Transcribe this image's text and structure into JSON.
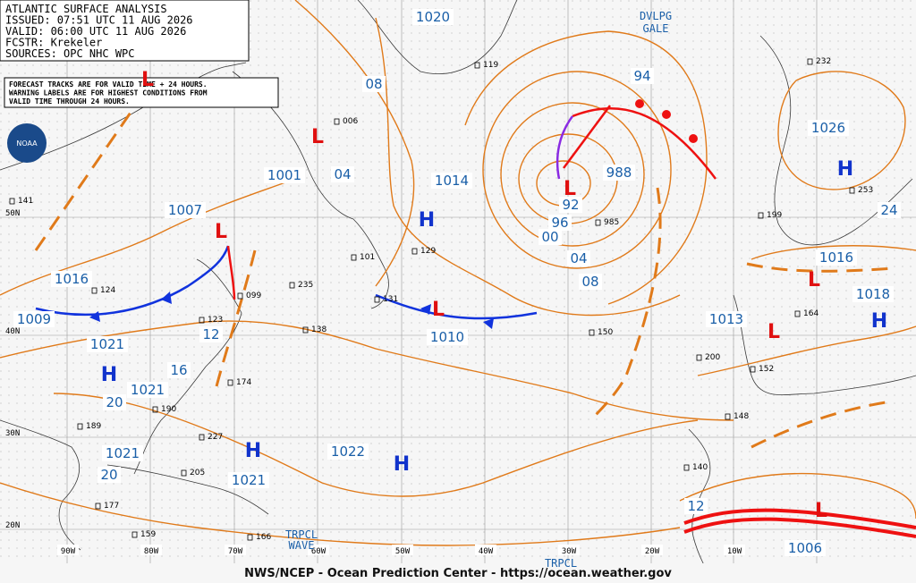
{
  "header": {
    "lines": [
      "ATLANTIC SURFACE ANALYSIS",
      "ISSUED: 07:51 UTC 11 AUG 2026",
      "VALID:  06:00 UTC 11 AUG 2026",
      "FCSTR:  Krekeler",
      "SOURCES: OPC NHC WPC"
    ]
  },
  "notice": {
    "lines": [
      "FORECAST TRACKS ARE FOR VALID TIME + 24 HOURS.",
      "WARNING LABELS ARE FOR HIGHEST CONDITIONS FROM",
      "VALID TIME THROUGH 24 HOURS."
    ]
  },
  "logo": "NOAA",
  "isobar_labels": [
    "1020",
    "08",
    "1001",
    "04",
    "1014",
    "1007",
    "1016",
    "1009",
    "1021",
    "1010",
    "988",
    "94",
    "92",
    "96",
    "00",
    "04",
    "08",
    "1026",
    "24",
    "1016",
    "1018",
    "1013",
    "12",
    "16",
    "1021",
    "20",
    "1021",
    "20",
    "1022",
    "1021",
    "12",
    "1006"
  ],
  "centers": [
    "L",
    "L",
    "L",
    "L",
    "L",
    "L",
    "L",
    "L",
    "H",
    "H",
    "H",
    "H",
    "H",
    "H"
  ],
  "lat_labels": [
    "50N",
    "40N",
    "30N",
    "20N"
  ],
  "lon_labels": [
    "90W",
    "80W",
    "70W",
    "60W",
    "50W",
    "40W",
    "30W",
    "20W",
    "10W"
  ],
  "special_labels": [
    "DVLPG",
    "GALE",
    "TRPCL",
    "WAVE",
    "TRPCL"
  ],
  "stations": [
    "141",
    "006",
    "129",
    "101",
    "985",
    "131",
    "235",
    "150",
    "199",
    "253",
    "232",
    "164",
    "174",
    "138",
    "099",
    "124",
    "123",
    "190",
    "189",
    "227",
    "205",
    "177",
    "200",
    "152",
    "148",
    "140",
    "166",
    "159",
    "119"
  ],
  "footer": "NWS/NCEP - Ocean Prediction Center - https://ocean.weather.gov"
}
